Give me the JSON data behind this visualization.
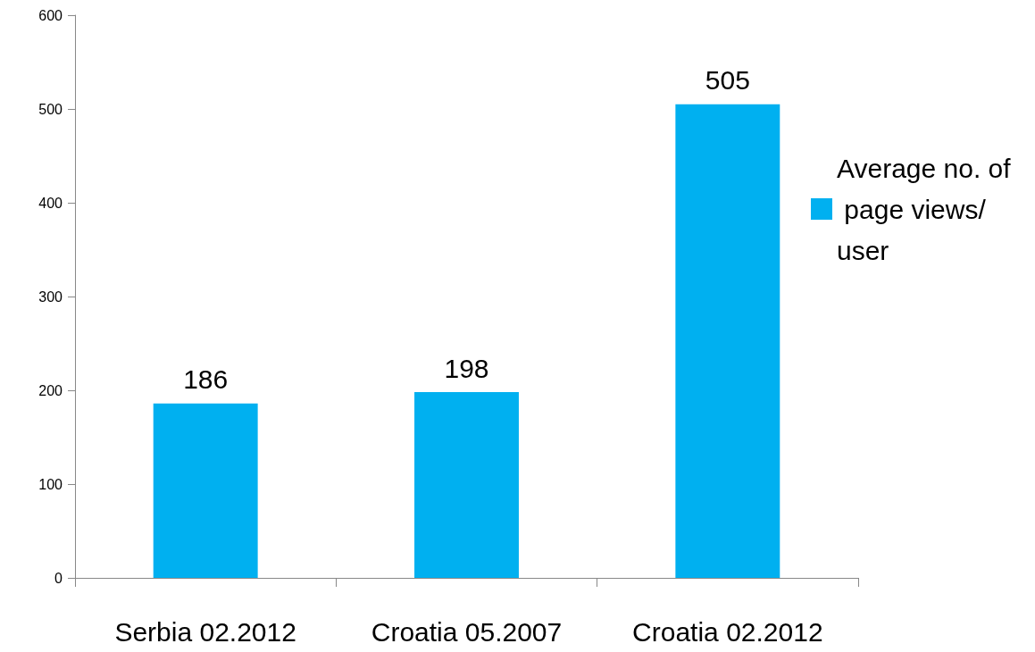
{
  "chart_data": {
    "type": "bar",
    "categories": [
      "Serbia 02.2012",
      "Croatia 05.2007",
      "Croatia 02.2012"
    ],
    "series": [
      {
        "name": "Average no. of page views/user",
        "color": "#00b0f0",
        "values": [
          186,
          198,
          505
        ]
      }
    ],
    "ylim": [
      0,
      600
    ],
    "yticks": [
      0,
      100,
      200,
      300,
      400,
      500,
      600
    ],
    "data_labels": true,
    "grid": false,
    "legend": "right"
  }
}
